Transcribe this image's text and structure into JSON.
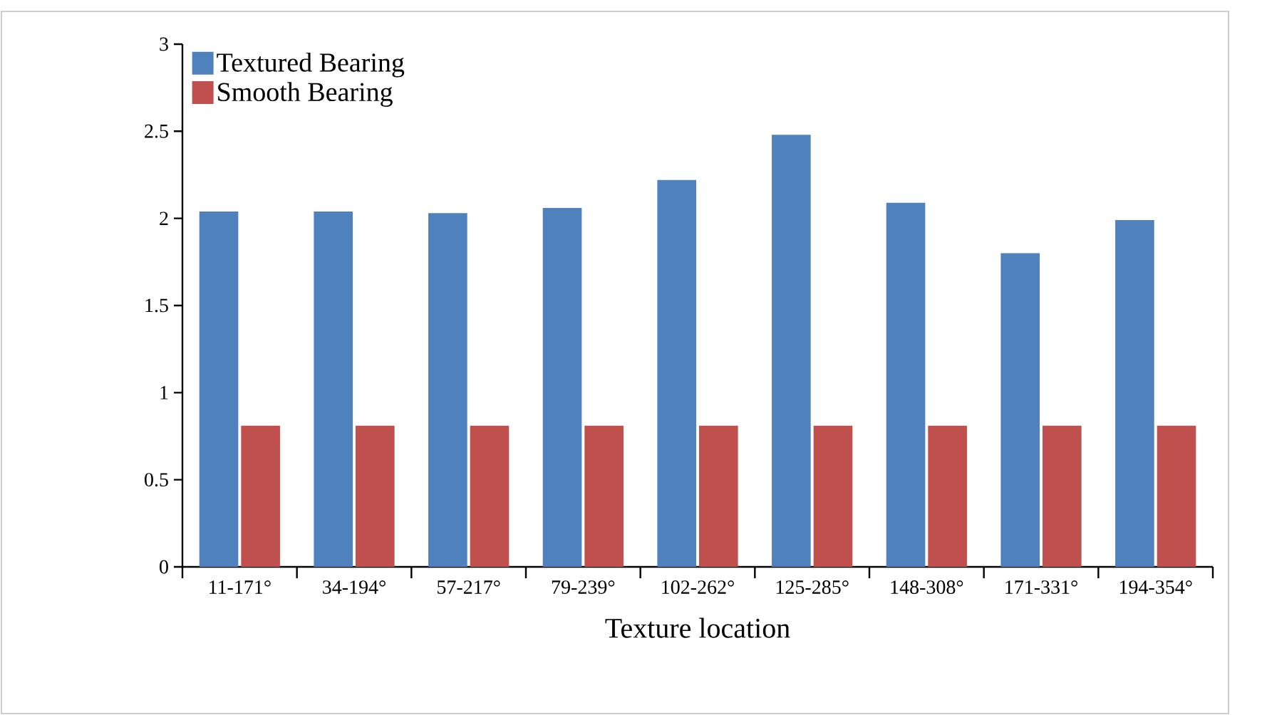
{
  "chart_data": {
    "type": "bar",
    "xlabel": "Texture location",
    "categories": [
      "11-171°",
      "34-194°",
      "57-217°",
      "79-239°",
      "102-262°",
      "125-285°",
      "148-308°",
      "171-331°",
      "194-354°"
    ],
    "series": [
      {
        "name": "Textured Bearing",
        "color": "#4f81bd",
        "values": [
          2.04,
          2.04,
          2.03,
          2.06,
          2.22,
          2.48,
          2.09,
          1.8,
          1.99
        ]
      },
      {
        "name": "Smooth Bearing",
        "color": "#c0504d",
        "values": [
          0.81,
          0.81,
          0.81,
          0.81,
          0.81,
          0.81,
          0.81,
          0.81,
          0.81
        ]
      }
    ],
    "ylim": [
      0,
      3
    ],
    "yticks": [
      0,
      0.5,
      1,
      1.5,
      2,
      2.5,
      3
    ],
    "legend": "top left",
    "grid": false
  }
}
